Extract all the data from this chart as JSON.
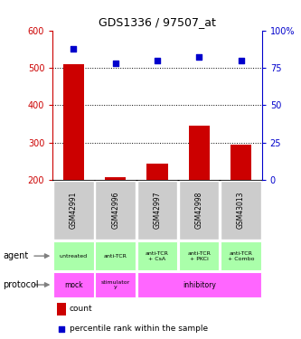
{
  "title": "GDS1336 / 97507_at",
  "samples": [
    "GSM42991",
    "GSM42996",
    "GSM42997",
    "GSM42998",
    "GSM43013"
  ],
  "counts": [
    510,
    207,
    243,
    345,
    295
  ],
  "percentile_ranks_pct": [
    88,
    78,
    80,
    82,
    80
  ],
  "count_baseline": 200,
  "left_ylim": [
    200,
    600
  ],
  "left_yticks": [
    200,
    300,
    400,
    500,
    600
  ],
  "right_ylim": [
    0,
    100
  ],
  "right_yticks": [
    0,
    25,
    50,
    75,
    100
  ],
  "right_yticklabels": [
    "0",
    "25",
    "50",
    "75",
    "100%"
  ],
  "agent_labels": [
    "untreated",
    "anti-TCR",
    "anti-TCR\n+ CsA",
    "anti-TCR\n+ PKCi",
    "anti-TCR\n+ Combo"
  ],
  "protocol_mock": "mock",
  "protocol_stim": "stimulator\ny",
  "protocol_inhib": "inhibitory",
  "agent_bg": "#aaffaa",
  "protocol_bg": "#ff66ff",
  "bar_color": "#cc0000",
  "scatter_color": "#0000cc",
  "sample_box_color": "#cccccc",
  "left_tick_color": "#cc0000",
  "right_tick_color": "#0000cc",
  "legend_count_color": "#cc0000",
  "legend_pct_color": "#0000cc"
}
